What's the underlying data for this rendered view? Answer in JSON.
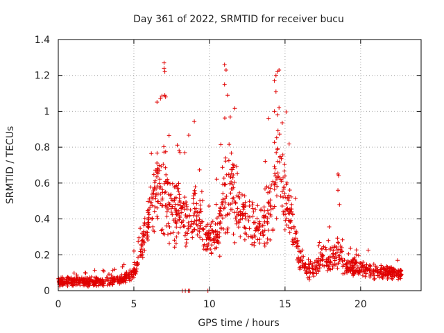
{
  "chart_data": {
    "type": "scatter",
    "title": "Day 361 of 2022, SRMTID for receiver bucu",
    "xlabel": "GPS time / hours",
    "ylabel": "SRMTID / TECUs",
    "xlim": [
      0,
      24
    ],
    "ylim": [
      0,
      1.4
    ],
    "xticks": [
      0,
      5,
      10,
      15,
      20
    ],
    "xtick_labels": [
      "0",
      "5",
      "10",
      "15",
      "20"
    ],
    "yticks": [
      0,
      0.2,
      0.4,
      0.6,
      0.8,
      1.0,
      1.2,
      1.4
    ],
    "ytick_labels": [
      "0",
      "0.2",
      "0.4",
      "0.6",
      "0.8",
      "1",
      "1.2",
      "1.4"
    ],
    "grid": true,
    "marker": "plus",
    "color": "#e00000",
    "series": [
      {
        "name": "SRMTID",
        "description": "dense per-epoch samples; representative envelope (hour, typical value, spread)",
        "profile": [
          [
            0.0,
            0.05,
            0.03
          ],
          [
            1.0,
            0.05,
            0.03
          ],
          [
            2.0,
            0.05,
            0.03
          ],
          [
            3.0,
            0.05,
            0.03
          ],
          [
            4.0,
            0.06,
            0.03
          ],
          [
            4.8,
            0.08,
            0.04
          ],
          [
            5.2,
            0.15,
            0.06
          ],
          [
            5.6,
            0.28,
            0.1
          ],
          [
            6.0,
            0.42,
            0.15
          ],
          [
            6.5,
            0.55,
            0.22
          ],
          [
            7.0,
            0.55,
            0.3
          ],
          [
            7.5,
            0.45,
            0.22
          ],
          [
            8.0,
            0.45,
            0.2
          ],
          [
            8.5,
            0.4,
            0.2
          ],
          [
            9.0,
            0.45,
            0.22
          ],
          [
            9.5,
            0.35,
            0.15
          ],
          [
            10.0,
            0.28,
            0.1
          ],
          [
            10.5,
            0.3,
            0.15
          ],
          [
            11.0,
            0.55,
            0.3
          ],
          [
            11.5,
            0.55,
            0.3
          ],
          [
            12.0,
            0.45,
            0.2
          ],
          [
            12.5,
            0.4,
            0.15
          ],
          [
            13.0,
            0.35,
            0.15
          ],
          [
            13.5,
            0.35,
            0.15
          ],
          [
            14.0,
            0.5,
            0.25
          ],
          [
            14.5,
            0.65,
            0.35
          ],
          [
            15.0,
            0.5,
            0.25
          ],
          [
            15.5,
            0.35,
            0.15
          ],
          [
            16.0,
            0.18,
            0.08
          ],
          [
            16.5,
            0.12,
            0.06
          ],
          [
            17.0,
            0.12,
            0.06
          ],
          [
            17.5,
            0.18,
            0.08
          ],
          [
            18.0,
            0.18,
            0.1
          ],
          [
            18.5,
            0.2,
            0.12
          ],
          [
            19.0,
            0.14,
            0.06
          ],
          [
            20.0,
            0.12,
            0.05
          ],
          [
            21.0,
            0.11,
            0.05
          ],
          [
            22.0,
            0.1,
            0.04
          ],
          [
            22.7,
            0.09,
            0.03
          ]
        ],
        "notable_points": [
          [
            7.0,
            1.27
          ],
          [
            7.0,
            1.24
          ],
          [
            7.05,
            1.22
          ],
          [
            7.05,
            1.09
          ],
          [
            7.1,
            1.08
          ],
          [
            11.0,
            1.26
          ],
          [
            11.1,
            1.23
          ],
          [
            11.0,
            1.15
          ],
          [
            11.2,
            1.09
          ],
          [
            14.5,
            1.22
          ],
          [
            14.6,
            1.23
          ],
          [
            14.4,
            1.2
          ],
          [
            14.3,
            1.17
          ],
          [
            14.4,
            1.11
          ],
          [
            14.6,
            1.02
          ],
          [
            14.3,
            1.0
          ],
          [
            14.5,
            0.98
          ],
          [
            18.5,
            0.65
          ],
          [
            18.55,
            0.64
          ],
          [
            18.5,
            0.56
          ],
          [
            18.6,
            0.48
          ],
          [
            8.2,
            0.0
          ],
          [
            8.4,
            0.0
          ],
          [
            8.6,
            0.0
          ],
          [
            8.7,
            0.0
          ],
          [
            9.9,
            0.0
          ]
        ]
      }
    ]
  }
}
